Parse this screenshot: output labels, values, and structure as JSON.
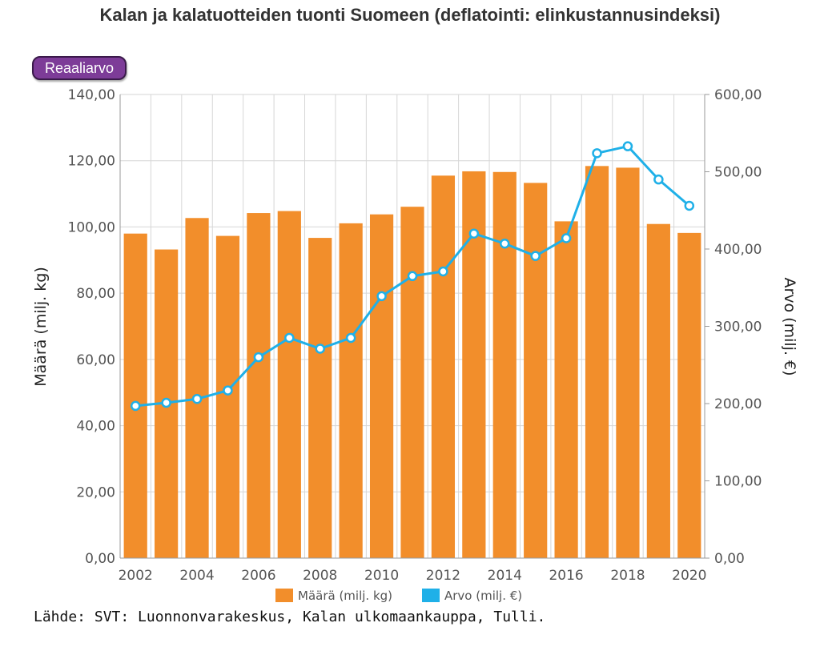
{
  "chart_data": {
    "type": "bar",
    "title": "Kalan ja kalatuotteiden tuonti Suomeen (deflatointi: elinkustannusindeksi)",
    "button_label": "Reaaliarvo",
    "x": [
      2002,
      2003,
      2004,
      2005,
      2006,
      2007,
      2008,
      2009,
      2010,
      2011,
      2012,
      2013,
      2014,
      2015,
      2016,
      2017,
      2018,
      2019,
      2020
    ],
    "x_tick_labels": [
      "2002",
      "2004",
      "2006",
      "2008",
      "2010",
      "2012",
      "2014",
      "2016",
      "2018",
      "2020"
    ],
    "series": [
      {
        "name": "Määrä (milj. kg)",
        "type": "bar",
        "axis": "left",
        "color": "#f28e2b",
        "values": [
          98.0,
          93.2,
          102.7,
          97.3,
          104.2,
          104.8,
          96.7,
          101.1,
          103.8,
          106.1,
          115.5,
          116.8,
          116.6,
          113.3,
          101.7,
          118.4,
          117.9,
          100.9,
          98.2
        ]
      },
      {
        "name": "Arvo (milj. €)",
        "type": "line",
        "axis": "right",
        "color": "#1fb0e8",
        "values": [
          197,
          201,
          206,
          217,
          260,
          285,
          271,
          285,
          339,
          365,
          371,
          420,
          407,
          391,
          414,
          524,
          533,
          490,
          456
        ]
      }
    ],
    "ylabel_left": "Määrä (milj. kg)",
    "ylabel_right": "Arvo (milj. €)",
    "ylim_left": [
      0,
      140
    ],
    "ylim_right": [
      0,
      600
    ],
    "yticks_left": [
      "0,00",
      "20,00",
      "40,00",
      "60,00",
      "80,00",
      "100,00",
      "120,00",
      "140,00"
    ],
    "yticks_right": [
      "0,00",
      "100,00",
      "200,00",
      "300,00",
      "400,00",
      "500,00",
      "600,00"
    ],
    "grid": true,
    "legend_position": "bottom-center"
  },
  "source": "Lähde: SVT: Luonnonvarakeskus, Kalan ulkomaankauppa, Tulli."
}
